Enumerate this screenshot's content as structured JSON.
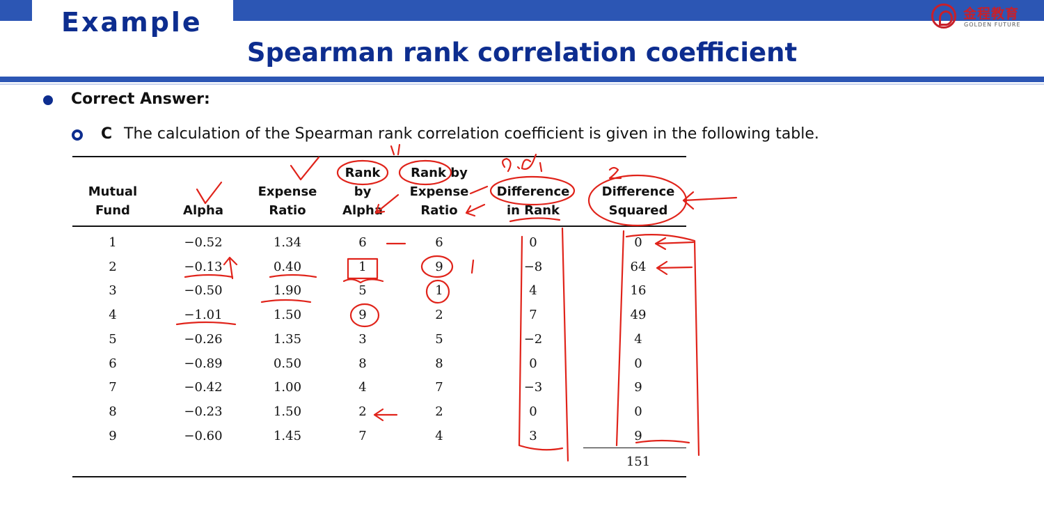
{
  "header": {
    "section_label": "Example",
    "title": "Spearman rank correlation coefficient",
    "logo_cn": "金程教育",
    "logo_en": "GOLDEN FUTURE"
  },
  "content": {
    "bullet_text": "Correct Answer:",
    "sub_letter": "C",
    "sub_text": "The calculation of the Spearman rank correlation coefficient is given in the following table."
  },
  "table": {
    "headers": [
      [
        "Mutual",
        "Fund"
      ],
      [
        "Alpha"
      ],
      [
        "Expense",
        "Ratio"
      ],
      [
        "Rank",
        "by",
        "Alpha"
      ],
      [
        "Rank by",
        "Expense",
        "Ratio"
      ],
      [
        "Difference",
        "in Rank"
      ],
      [
        "Difference",
        "Squared"
      ]
    ],
    "rows": [
      [
        "1",
        "−0.52",
        "1.34",
        "6",
        "6",
        "0",
        "0"
      ],
      [
        "2",
        "−0.13",
        "0.40",
        "1",
        "9",
        "−8",
        "64"
      ],
      [
        "3",
        "−0.50",
        "1.90",
        "5",
        "1",
        "4",
        "16"
      ],
      [
        "4",
        "−1.01",
        "1.50",
        "9",
        "2",
        "7",
        "49"
      ],
      [
        "5",
        "−0.26",
        "1.35",
        "3",
        "5",
        "−2",
        "4"
      ],
      [
        "6",
        "−0.89",
        "0.50",
        "8",
        "8",
        "0",
        "0"
      ],
      [
        "7",
        "−0.42",
        "1.00",
        "4",
        "7",
        "−3",
        "9"
      ],
      [
        "8",
        "−0.23",
        "1.50",
        "2",
        "2",
        "0",
        "0"
      ],
      [
        "9",
        "−0.60",
        "1.45",
        "7",
        "4",
        "3",
        "9"
      ]
    ],
    "total": "151"
  },
  "annotations": {
    "di_label": "d. di",
    "squared_mark": "2",
    "top_mark": "1."
  },
  "colors": {
    "brand_blue": "#2c56b4",
    "title_blue": "#0d2d8f",
    "ink_red": "#e0231a"
  }
}
